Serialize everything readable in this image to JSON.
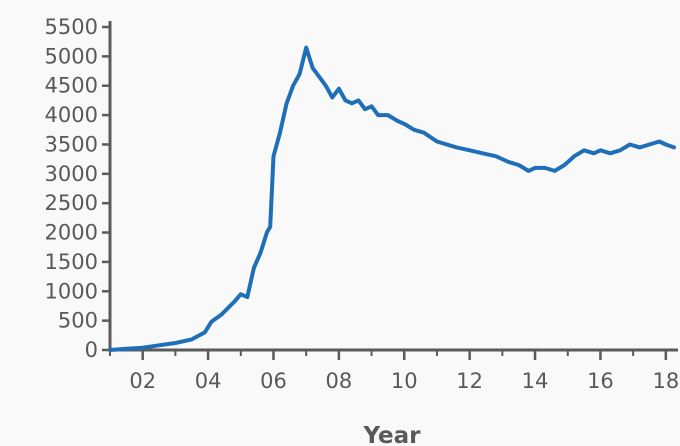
{
  "chart_data": {
    "type": "line",
    "title": "",
    "xlabel": "Year",
    "ylabel": "",
    "xlim": [
      2001.0,
      2018.25
    ],
    "ylim": [
      0,
      5500
    ],
    "grid": false,
    "legend": "none",
    "x_ticks": [
      2002,
      2004,
      2006,
      2008,
      2010,
      2012,
      2014,
      2016,
      2018
    ],
    "x_tick_labels": [
      "02",
      "04",
      "06",
      "08",
      "10",
      "12",
      "14",
      "16",
      "18"
    ],
    "y_ticks": [
      0,
      500,
      1000,
      1500,
      2000,
      2500,
      3000,
      3500,
      4000,
      4500,
      5000,
      5500
    ],
    "y_tick_labels": [
      "0",
      "500",
      "1000",
      "1500",
      "2000",
      "2500",
      "3000",
      "3500",
      "4000",
      "4500",
      "5000",
      "5500"
    ],
    "series": [
      {
        "color": "#1f6fb8",
        "x": [
          2001.0,
          2001.5,
          2002.0,
          2002.5,
          2003.0,
          2003.5,
          2003.9,
          2004.1,
          2004.4,
          2004.8,
          2005.0,
          2005.2,
          2005.4,
          2005.6,
          2005.8,
          2005.9,
          2006.0,
          2006.2,
          2006.4,
          2006.6,
          2006.8,
          2007.0,
          2007.2,
          2007.4,
          2007.6,
          2007.8,
          2008.0,
          2008.2,
          2008.4,
          2008.6,
          2008.8,
          2009.0,
          2009.2,
          2009.5,
          2009.8,
          2010.0,
          2010.3,
          2010.6,
          2011.0,
          2011.3,
          2011.6,
          2012.0,
          2012.4,
          2012.8,
          2013.2,
          2013.5,
          2013.8,
          2014.0,
          2014.3,
          2014.6,
          2014.9,
          2015.2,
          2015.5,
          2015.8,
          2016.0,
          2016.3,
          2016.6,
          2016.9,
          2017.2,
          2017.5,
          2017.8,
          2018.0,
          2018.25
        ],
        "y": [
          0,
          20,
          40,
          80,
          120,
          180,
          300,
          480,
          600,
          820,
          950,
          900,
          1400,
          1650,
          2000,
          2100,
          3300,
          3700,
          4200,
          4500,
          4700,
          5150,
          4800,
          4650,
          4500,
          4300,
          4450,
          4250,
          4200,
          4250,
          4100,
          4150,
          4000,
          4000,
          3900,
          3850,
          3750,
          3700,
          3550,
          3500,
          3450,
          3400,
          3350,
          3300,
          3200,
          3150,
          3050,
          3100,
          3100,
          3050,
          3150,
          3300,
          3400,
          3350,
          3400,
          3350,
          3400,
          3500,
          3450,
          3500,
          3550,
          3500,
          3450
        ]
      }
    ]
  }
}
